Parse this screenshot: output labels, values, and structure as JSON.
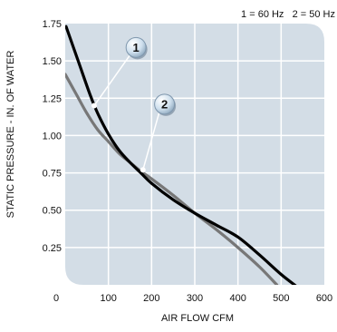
{
  "legend": {
    "text": "1 = 60 Hz   2 = 50 Hz"
  },
  "colors": {
    "plot_background": "#d3dde6",
    "grid": "#ffffff",
    "curve_60hz": "#000000",
    "curve_50hz": "#777777",
    "marker_fill": "#cfe0ee",
    "marker_text": "#000000"
  },
  "chart_data": {
    "type": "line",
    "xlabel": "AIR FLOW CFM",
    "ylabel": "STATIC PRESSURE - IN. OF WATER",
    "xlim": [
      0,
      600
    ],
    "ylim": [
      0,
      1.75
    ],
    "x_ticks": [
      0,
      100,
      200,
      300,
      400,
      500,
      600
    ],
    "y_ticks": [
      0.25,
      0.5,
      0.75,
      1.0,
      1.25,
      1.5,
      1.75
    ],
    "x_tick_labels": [
      "0",
      "100",
      "200",
      "300",
      "400",
      "500",
      "600"
    ],
    "y_tick_labels": [
      "0.25",
      "0.50",
      "0.75",
      "1.00",
      "1.25",
      "1.50",
      "1.75"
    ],
    "grid": true,
    "legend_position": "top-right",
    "series": [
      {
        "name": "1 = 60 Hz",
        "marker_label": "1",
        "color": "#000000",
        "x": [
          2,
          30,
          58,
          75,
          100,
          125,
          150,
          175,
          200,
          250,
          300,
          350,
          400,
          450,
          500,
          540
        ],
        "y": [
          1.73,
          1.5,
          1.27,
          1.15,
          1.01,
          0.9,
          0.82,
          0.75,
          0.68,
          0.57,
          0.48,
          0.4,
          0.32,
          0.2,
          0.07,
          -0.02
        ]
      },
      {
        "name": "2 = 50 Hz",
        "marker_label": "2",
        "color": "#777777",
        "x": [
          0,
          25,
          50,
          75,
          100,
          125,
          150,
          175,
          200,
          250,
          300,
          350,
          400,
          450,
          490
        ],
        "y": [
          1.41,
          1.28,
          1.15,
          1.04,
          0.96,
          0.88,
          0.82,
          0.76,
          0.71,
          0.6,
          0.48,
          0.37,
          0.25,
          0.12,
          0.0
        ]
      }
    ],
    "callouts": [
      {
        "label": "1",
        "point": [
          67,
          1.2
        ],
        "bubble": [
          164,
          1.59
        ]
      },
      {
        "label": "2",
        "point": [
          180,
          0.77
        ],
        "bubble": [
          230,
          1.21
        ]
      }
    ]
  }
}
